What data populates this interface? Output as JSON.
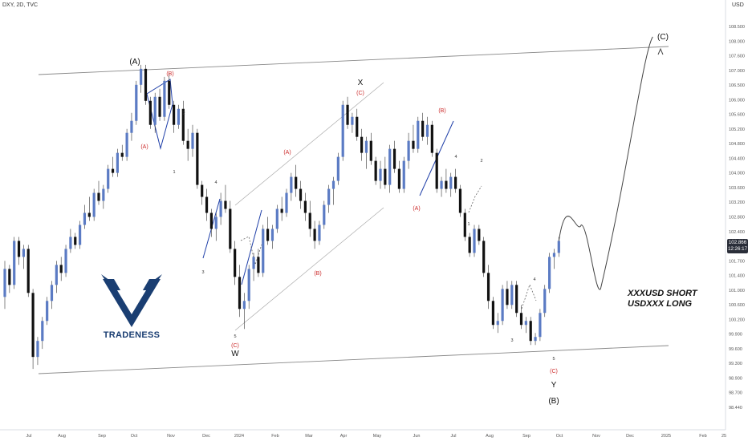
{
  "header": {
    "symbol": "DXY, 2D, TVC",
    "currency": "USD"
  },
  "price_tag": {
    "price": "102.866",
    "timer": "12:26:17"
  },
  "logo": {
    "name": "TRADENESS",
    "icon": "bull-v-logo-icon"
  },
  "callout": {
    "line1": "XXXUSD SHORT",
    "line2": "USDXXX LONG"
  },
  "colors": {
    "bull": "#5b7bc4",
    "bear": "#111111",
    "wave_red": "#cc2b2b",
    "wave_blue": "#1f3fa8",
    "channel": "#888888"
  },
  "chart_data": {
    "type": "candlestick",
    "x_ticks": [
      "Jul",
      "Aug",
      "Sep",
      "Oct",
      "Nov",
      "Dec",
      "2024",
      "Feb",
      "Mar",
      "Apr",
      "May",
      "Jun",
      "Jul",
      "Aug",
      "Sep",
      "Oct",
      "Nov",
      "Dec",
      "2025",
      "Feb",
      "25"
    ],
    "y_ticks": [
      "108.500",
      "108.000",
      "107.600",
      "107.000",
      "106.500",
      "106.000",
      "105.600",
      "105.200",
      "104.800",
      "104.400",
      "104.000",
      "103.600",
      "103.200",
      "102.800",
      "102.400",
      "102.000",
      "101.700",
      "101.400",
      "101.000",
      "100.600",
      "100.200",
      "99.900",
      "99.600",
      "99.300",
      "98.900",
      "98.700",
      "98.440"
    ],
    "ylim": [
      98.3,
      108.8
    ],
    "candles": [
      [
        101.5,
        102.4,
        101.2,
        102.2
      ],
      [
        102.2,
        102.3,
        101.6,
        101.8
      ],
      [
        101.8,
        103.0,
        101.7,
        102.9
      ],
      [
        102.9,
        103.0,
        102.3,
        102.5
      ],
      [
        102.5,
        102.8,
        102.2,
        102.7
      ],
      [
        102.7,
        102.8,
        101.5,
        101.6
      ],
      [
        101.6,
        101.7,
        99.7,
        100.0
      ],
      [
        100.0,
        100.5,
        99.8,
        100.4
      ],
      [
        100.4,
        101.0,
        100.2,
        100.9
      ],
      [
        100.9,
        101.5,
        100.8,
        101.4
      ],
      [
        101.4,
        101.9,
        101.2,
        101.8
      ],
      [
        101.8,
        102.4,
        101.6,
        102.3
      ],
      [
        102.3,
        102.5,
        101.9,
        102.1
      ],
      [
        102.1,
        102.8,
        102.0,
        102.7
      ],
      [
        102.7,
        103.2,
        102.6,
        103.0
      ],
      [
        103.0,
        103.1,
        102.7,
        102.8
      ],
      [
        102.8,
        103.4,
        102.7,
        103.3
      ],
      [
        103.3,
        103.8,
        103.2,
        103.6
      ],
      [
        103.6,
        104.0,
        103.4,
        103.5
      ],
      [
        103.5,
        104.2,
        103.4,
        104.1
      ],
      [
        104.1,
        104.4,
        103.8,
        103.9
      ],
      [
        103.9,
        104.3,
        103.7,
        104.2
      ],
      [
        104.2,
        104.8,
        104.1,
        104.7
      ],
      [
        104.7,
        105.0,
        104.5,
        104.6
      ],
      [
        104.6,
        105.2,
        104.5,
        105.1
      ],
      [
        105.1,
        105.3,
        104.9,
        105.0
      ],
      [
        105.0,
        105.7,
        104.9,
        105.6
      ],
      [
        105.6,
        106.1,
        105.4,
        105.9
      ],
      [
        105.9,
        106.9,
        105.8,
        106.8
      ],
      [
        106.8,
        107.3,
        106.6,
        107.2
      ],
      [
        107.2,
        107.3,
        106.3,
        106.4
      ],
      [
        106.4,
        106.5,
        105.7,
        105.8
      ],
      [
        105.8,
        106.6,
        105.6,
        106.5
      ],
      [
        106.5,
        106.7,
        105.9,
        106.0
      ],
      [
        106.0,
        107.0,
        105.9,
        106.9
      ],
      [
        106.9,
        107.1,
        106.2,
        106.3
      ],
      [
        106.3,
        106.4,
        105.6,
        105.8
      ],
      [
        105.8,
        106.3,
        105.7,
        106.2
      ],
      [
        106.2,
        106.4,
        105.3,
        105.4
      ],
      [
        105.4,
        105.7,
        104.9,
        105.2
      ],
      [
        105.2,
        105.8,
        105.0,
        105.6
      ],
      [
        105.6,
        105.7,
        104.2,
        104.3
      ],
      [
        104.3,
        104.4,
        103.8,
        104.0
      ],
      [
        104.0,
        104.2,
        103.4,
        103.6
      ],
      [
        103.6,
        103.7,
        103.0,
        103.2
      ],
      [
        103.2,
        103.6,
        102.9,
        103.5
      ],
      [
        103.5,
        104.1,
        103.3,
        103.9
      ],
      [
        103.9,
        104.3,
        103.6,
        103.7
      ],
      [
        103.7,
        103.9,
        102.6,
        102.7
      ],
      [
        102.7,
        102.9,
        101.8,
        102.0
      ],
      [
        102.0,
        102.3,
        101.0,
        101.2
      ],
      [
        101.2,
        101.6,
        100.7,
        101.4
      ],
      [
        101.4,
        102.3,
        101.2,
        102.2
      ],
      [
        102.2,
        102.6,
        101.9,
        102.5
      ],
      [
        102.5,
        102.7,
        102.0,
        102.1
      ],
      [
        102.1,
        103.3,
        102.0,
        103.2
      ],
      [
        103.2,
        103.5,
        102.8,
        102.9
      ],
      [
        102.9,
        103.3,
        102.7,
        103.2
      ],
      [
        103.2,
        103.8,
        103.1,
        103.7
      ],
      [
        103.7,
        104.0,
        103.4,
        103.6
      ],
      [
        103.6,
        104.2,
        103.5,
        104.1
      ],
      [
        104.1,
        104.6,
        103.9,
        104.5
      ],
      [
        104.5,
        104.8,
        104.0,
        104.2
      ],
      [
        104.2,
        104.4,
        103.7,
        103.9
      ],
      [
        103.9,
        104.1,
        103.4,
        103.6
      ],
      [
        103.6,
        103.9,
        103.0,
        103.2
      ],
      [
        103.2,
        103.4,
        102.7,
        102.9
      ],
      [
        102.9,
        103.4,
        102.8,
        103.3
      ],
      [
        103.3,
        103.9,
        103.2,
        103.8
      ],
      [
        103.8,
        104.3,
        103.6,
        104.2
      ],
      [
        104.2,
        104.5,
        103.8,
        104.4
      ],
      [
        104.4,
        105.1,
        104.3,
        105.0
      ],
      [
        105.0,
        106.4,
        104.9,
        106.3
      ],
      [
        106.3,
        106.5,
        105.7,
        105.8
      ],
      [
        105.8,
        106.1,
        105.6,
        106.0
      ],
      [
        106.0,
        106.2,
        105.4,
        105.5
      ],
      [
        105.5,
        105.7,
        104.9,
        105.1
      ],
      [
        105.1,
        105.5,
        104.7,
        105.4
      ],
      [
        105.4,
        105.6,
        104.8,
        104.9
      ],
      [
        104.9,
        105.0,
        104.3,
        104.4
      ],
      [
        104.4,
        104.9,
        104.2,
        104.7
      ],
      [
        104.7,
        105.0,
        104.2,
        104.3
      ],
      [
        104.3,
        105.3,
        104.1,
        105.2
      ],
      [
        105.2,
        105.4,
        104.6,
        104.7
      ],
      [
        104.7,
        104.9,
        104.1,
        104.2
      ],
      [
        104.2,
        105.0,
        104.1,
        104.9
      ],
      [
        104.9,
        105.6,
        104.7,
        105.4
      ],
      [
        105.4,
        105.8,
        105.1,
        105.2
      ],
      [
        105.2,
        106.0,
        105.1,
        105.9
      ],
      [
        105.9,
        106.1,
        105.4,
        105.5
      ],
      [
        105.5,
        106.0,
        105.3,
        105.8
      ],
      [
        105.8,
        105.9,
        105.0,
        105.1
      ],
      [
        105.1,
        105.2,
        104.1,
        104.2
      ],
      [
        104.2,
        104.5,
        104.0,
        104.4
      ],
      [
        104.4,
        104.7,
        104.1,
        104.2
      ],
      [
        104.2,
        104.6,
        104.0,
        104.5
      ],
      [
        104.5,
        104.7,
        104.1,
        104.2
      ],
      [
        104.2,
        104.3,
        103.5,
        103.6
      ],
      [
        103.6,
        103.7,
        102.9,
        103.0
      ],
      [
        103.0,
        103.1,
        102.5,
        102.6
      ],
      [
        102.6,
        103.3,
        102.5,
        103.2
      ],
      [
        103.2,
        103.3,
        102.8,
        102.9
      ],
      [
        102.9,
        103.0,
        102.0,
        102.1
      ],
      [
        102.1,
        102.3,
        101.2,
        101.4
      ],
      [
        101.4,
        101.5,
        100.7,
        100.8
      ],
      [
        100.8,
        101.1,
        100.6,
        100.9
      ],
      [
        100.9,
        101.8,
        100.8,
        101.7
      ],
      [
        101.7,
        101.9,
        101.2,
        101.3
      ],
      [
        101.3,
        101.9,
        101.2,
        101.8
      ],
      [
        101.8,
        101.9,
        101.0,
        101.1
      ],
      [
        101.1,
        101.3,
        100.7,
        100.8
      ],
      [
        100.8,
        101.0,
        100.6,
        100.9
      ],
      [
        100.9,
        101.0,
        100.3,
        100.4
      ],
      [
        100.4,
        100.6,
        100.3,
        100.5
      ],
      [
        100.5,
        101.2,
        100.4,
        101.1
      ],
      [
        101.1,
        101.8,
        101.0,
        101.7
      ],
      [
        101.7,
        102.6,
        101.6,
        102.5
      ],
      [
        102.5,
        102.7,
        102.2,
        102.6
      ],
      [
        102.6,
        103.0,
        102.5,
        102.9
      ]
    ],
    "projection": [
      [
        102.9,
        104.2
      ],
      [
        103.3,
        103.0
      ],
      [
        101.7,
        103.3
      ],
      [
        108.0,
        104.5
      ]
    ],
    "wave_labels": {
      "major": [
        "(A)",
        "X",
        "W",
        "Y",
        "(B)",
        "(C)"
      ],
      "minor_red": [
        "(B)",
        "(A)",
        "(C)",
        "(A)",
        "(B)",
        "(B)",
        "(A)",
        "(C)",
        "(C)"
      ],
      "minor_digits": [
        "2",
        "1",
        "4",
        "3",
        "5",
        "4",
        "2",
        "1",
        "4",
        "3",
        "5"
      ]
    },
    "grid": false,
    "legend": "none"
  }
}
